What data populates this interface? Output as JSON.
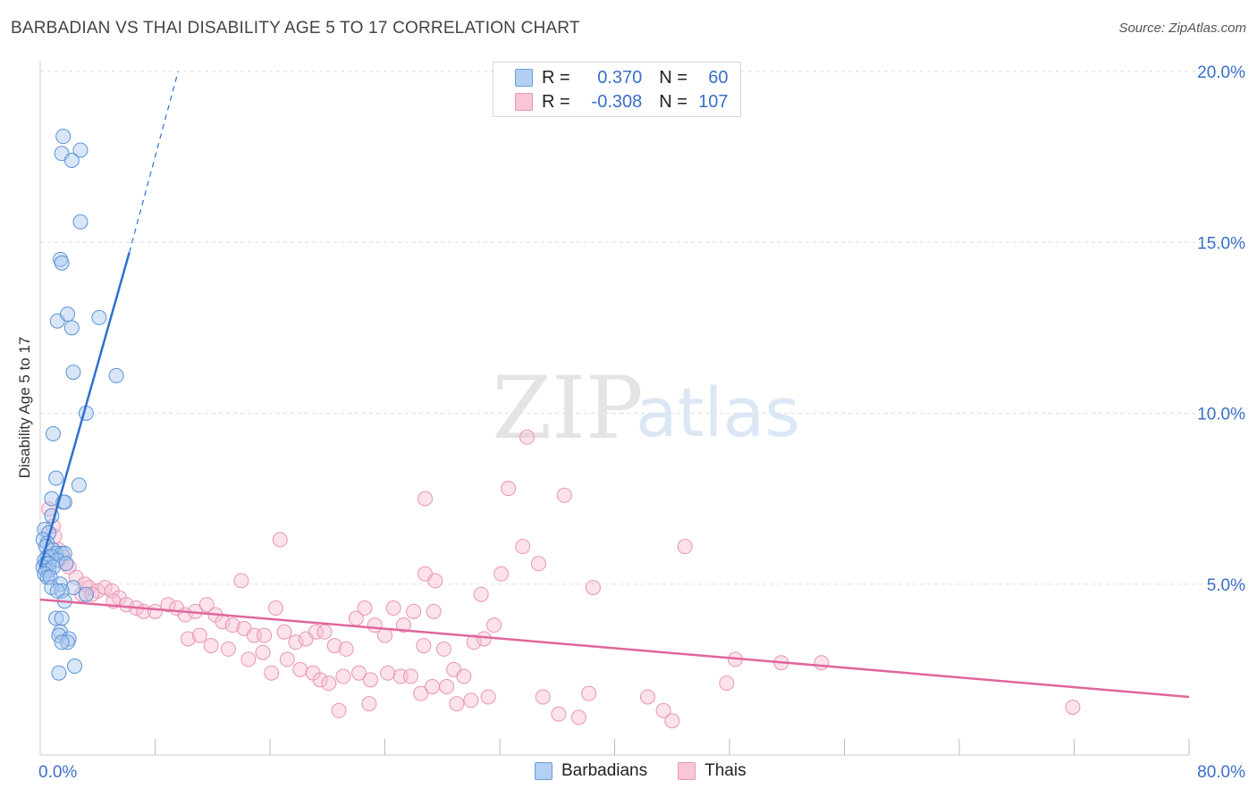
{
  "header": {
    "title": "BARBADIAN VS THAI DISABILITY AGE 5 TO 17 CORRELATION CHART",
    "source": "Source: ZipAtlas.com"
  },
  "legend": {
    "rows": [
      {
        "r_label": "R = ",
        "r_value": "0.370",
        "n_label": "N = ",
        "n_value": "60"
      },
      {
        "r_label": "R = ",
        "r_value": "-0.308",
        "n_label": "N = ",
        "n_value": "107"
      }
    ],
    "series_names": [
      "Barbadians",
      "Thais"
    ]
  },
  "watermark": {
    "zip": "ZIP",
    "atlas": "atlas"
  },
  "colors": {
    "blue_fill": "#a8c8f0",
    "blue_stroke": "#5b93d6",
    "blue_line": "#2f6fd0",
    "pink_fill": "#f6bfd2",
    "pink_stroke": "#e995b3",
    "pink_line": "#e0669a",
    "axis_label": "#3a6fc8",
    "grid": "#dddddd"
  },
  "chart_data": {
    "type": "scatter",
    "title": "BARBADIAN VS THAI DISABILITY AGE 5 TO 17 CORRELATION CHART",
    "xlabel": "",
    "ylabel": "Disability Age 5 to 17",
    "xlim": [
      0,
      80
    ],
    "ylim": [
      0,
      20
    ],
    "x_tick_labels": [
      "0.0%",
      "80.0%"
    ],
    "y_tick_labels": [
      "5.0%",
      "10.0%",
      "15.0%",
      "20.0%"
    ],
    "y_ticks": [
      5,
      10,
      15,
      20
    ],
    "grid": true,
    "series": [
      {
        "name": "Barbadians",
        "R": 0.37,
        "N": 60,
        "trend": {
          "x0": 0.0,
          "y0": 5.5,
          "x1": 6.2,
          "y1": 14.7,
          "dash_to_x": 9.6,
          "dash_to_y": 20.0
        },
        "points": [
          [
            1.6,
            18.1
          ],
          [
            1.5,
            17.6
          ],
          [
            2.8,
            17.7
          ],
          [
            2.2,
            17.4
          ],
          [
            2.8,
            15.6
          ],
          [
            1.4,
            14.5
          ],
          [
            1.5,
            14.4
          ],
          [
            1.2,
            12.7
          ],
          [
            1.9,
            12.9
          ],
          [
            2.2,
            12.5
          ],
          [
            4.1,
            12.8
          ],
          [
            2.3,
            11.2
          ],
          [
            5.3,
            11.1
          ],
          [
            3.2,
            10.0
          ],
          [
            0.9,
            9.4
          ],
          [
            1.1,
            8.1
          ],
          [
            2.7,
            7.9
          ],
          [
            0.8,
            7.5
          ],
          [
            1.6,
            7.4
          ],
          [
            1.7,
            7.4
          ],
          [
            0.8,
            7.0
          ],
          [
            0.3,
            6.6
          ],
          [
            0.6,
            6.5
          ],
          [
            0.2,
            6.3
          ],
          [
            0.5,
            6.2
          ],
          [
            0.4,
            6.1
          ],
          [
            0.9,
            6.0
          ],
          [
            1.1,
            5.9
          ],
          [
            1.5,
            5.9
          ],
          [
            1.7,
            5.9
          ],
          [
            0.5,
            5.8
          ],
          [
            0.8,
            5.8
          ],
          [
            1.2,
            5.7
          ],
          [
            0.3,
            5.7
          ],
          [
            0.4,
            5.6
          ],
          [
            0.6,
            5.6
          ],
          [
            1.8,
            5.6
          ],
          [
            0.2,
            5.5
          ],
          [
            0.4,
            5.4
          ],
          [
            0.6,
            5.4
          ],
          [
            0.9,
            5.5
          ],
          [
            0.3,
            5.3
          ],
          [
            0.5,
            5.2
          ],
          [
            0.7,
            5.2
          ],
          [
            1.4,
            5.0
          ],
          [
            2.3,
            4.9
          ],
          [
            0.8,
            4.9
          ],
          [
            1.5,
            4.8
          ],
          [
            1.2,
            4.8
          ],
          [
            3.2,
            4.7
          ],
          [
            1.7,
            4.5
          ],
          [
            1.1,
            4.0
          ],
          [
            1.5,
            4.0
          ],
          [
            1.4,
            3.6
          ],
          [
            1.3,
            3.5
          ],
          [
            2.0,
            3.4
          ],
          [
            1.9,
            3.3
          ],
          [
            1.5,
            3.3
          ],
          [
            2.4,
            2.6
          ],
          [
            1.3,
            2.4
          ]
        ]
      },
      {
        "name": "Thais",
        "R": -0.308,
        "N": 107,
        "trend": {
          "x0": 0.0,
          "y0": 4.55,
          "x1": 80.0,
          "y1": 1.7
        },
        "points": [
          [
            33.9,
            9.3
          ],
          [
            26.8,
            7.5
          ],
          [
            32.6,
            7.8
          ],
          [
            36.5,
            7.6
          ],
          [
            16.7,
            6.3
          ],
          [
            33.6,
            6.1
          ],
          [
            44.9,
            6.1
          ],
          [
            34.7,
            5.6
          ],
          [
            26.8,
            5.3
          ],
          [
            32.1,
            5.3
          ],
          [
            27.5,
            5.1
          ],
          [
            14.0,
            5.1
          ],
          [
            38.5,
            4.9
          ],
          [
            30.7,
            4.7
          ],
          [
            0.6,
            7.2
          ],
          [
            0.9,
            6.7
          ],
          [
            1.0,
            6.4
          ],
          [
            1.3,
            6.0
          ],
          [
            1.6,
            5.8
          ],
          [
            1.8,
            5.6
          ],
          [
            2.0,
            5.5
          ],
          [
            2.5,
            5.2
          ],
          [
            3.1,
            5.0
          ],
          [
            3.4,
            4.9
          ],
          [
            4.0,
            4.8
          ],
          [
            4.5,
            4.9
          ],
          [
            5.0,
            4.8
          ],
          [
            5.5,
            4.6
          ],
          [
            2.9,
            4.7
          ],
          [
            3.6,
            4.7
          ],
          [
            5.1,
            4.5
          ],
          [
            6.0,
            4.4
          ],
          [
            6.7,
            4.3
          ],
          [
            7.2,
            4.2
          ],
          [
            8.0,
            4.2
          ],
          [
            8.9,
            4.4
          ],
          [
            9.5,
            4.3
          ],
          [
            10.1,
            4.1
          ],
          [
            10.8,
            4.2
          ],
          [
            11.6,
            4.4
          ],
          [
            12.2,
            4.1
          ],
          [
            12.7,
            3.9
          ],
          [
            13.4,
            3.8
          ],
          [
            14.2,
            3.7
          ],
          [
            14.9,
            3.5
          ],
          [
            15.6,
            3.5
          ],
          [
            16.4,
            4.3
          ],
          [
            17.0,
            3.6
          ],
          [
            17.8,
            3.3
          ],
          [
            18.5,
            3.4
          ],
          [
            19.2,
            3.6
          ],
          [
            19.8,
            3.6
          ],
          [
            20.5,
            3.2
          ],
          [
            21.3,
            3.1
          ],
          [
            22.0,
            4.0
          ],
          [
            22.6,
            4.3
          ],
          [
            23.3,
            3.8
          ],
          [
            24.0,
            3.5
          ],
          [
            24.6,
            4.3
          ],
          [
            25.3,
            3.8
          ],
          [
            26.0,
            4.2
          ],
          [
            26.7,
            3.2
          ],
          [
            27.4,
            4.2
          ],
          [
            28.1,
            3.1
          ],
          [
            28.8,
            2.5
          ],
          [
            29.5,
            2.3
          ],
          [
            30.2,
            3.3
          ],
          [
            30.9,
            3.4
          ],
          [
            31.6,
            3.8
          ],
          [
            10.3,
            3.4
          ],
          [
            11.1,
            3.5
          ],
          [
            11.9,
            3.2
          ],
          [
            13.1,
            3.1
          ],
          [
            14.5,
            2.8
          ],
          [
            15.5,
            3.0
          ],
          [
            16.1,
            2.4
          ],
          [
            17.2,
            2.8
          ],
          [
            18.1,
            2.5
          ],
          [
            19.0,
            2.4
          ],
          [
            19.5,
            2.2
          ],
          [
            20.1,
            2.1
          ],
          [
            21.1,
            2.3
          ],
          [
            22.2,
            2.4
          ],
          [
            23.0,
            2.2
          ],
          [
            24.2,
            2.4
          ],
          [
            25.1,
            2.3
          ],
          [
            25.8,
            2.3
          ],
          [
            26.5,
            1.8
          ],
          [
            27.3,
            2.0
          ],
          [
            28.3,
            2.0
          ],
          [
            29.0,
            1.5
          ],
          [
            30.0,
            1.6
          ],
          [
            31.2,
            1.7
          ],
          [
            20.8,
            1.3
          ],
          [
            22.9,
            1.5
          ],
          [
            35.0,
            1.7
          ],
          [
            36.1,
            1.2
          ],
          [
            37.5,
            1.1
          ],
          [
            38.2,
            1.8
          ],
          [
            42.3,
            1.7
          ],
          [
            43.4,
            1.3
          ],
          [
            44.0,
            1.0
          ],
          [
            48.4,
            2.8
          ],
          [
            51.6,
            2.7
          ],
          [
            54.4,
            2.7
          ],
          [
            47.8,
            2.1
          ],
          [
            71.9,
            1.4
          ]
        ]
      }
    ]
  }
}
